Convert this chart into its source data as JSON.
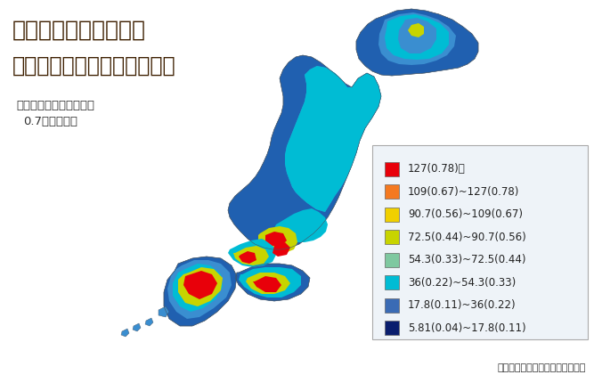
{
  "title_line1": "天然辐射的空间剂量率",
  "title_line2": "纳戈瑞／小时（毫西弗／年）",
  "note_bullet": "・",
  "note_line1": "转换成实际剂量时使用",
  "note_line2": "0.7西弗／戈瑞",
  "source_text": "出処：根据日本地质学会网站制作",
  "bg_color": "#ffffff",
  "title_color": "#3d1f00",
  "note_color": "#333333",
  "legend_labels": [
    "127(0.78)＜",
    "109(0.67)~127(0.78)",
    "90.7(0.56)~109(0.67)",
    "72.5(0.44)~90.7(0.56)",
    "54.3(0.33)~72.5(0.44)",
    "36(0.22)~54.3(0.33)",
    "17.8(0.11)~36(0.22)",
    "5.81(0.04)~17.8(0.11)"
  ],
  "legend_colors": [
    "#e8000a",
    "#f47920",
    "#f0d000",
    "#c8d400",
    "#7ec8a0",
    "#00bcd4",
    "#3a6bb5",
    "#0a1e6e"
  ],
  "legend_bg": "#eef3f8",
  "legend_border": "#aaaaaa",
  "map_base_dark": "#0a1e6e",
  "map_mid_blue": "#2060b0",
  "map_light_blue": "#3a8ed0",
  "map_cyan": "#00bcd4",
  "map_light_cyan": "#6dd5e8",
  "map_green": "#7ec8a0",
  "map_yellow_green": "#c8d400",
  "map_yellow": "#f0d000",
  "map_orange": "#f47920",
  "map_red": "#e8000a"
}
